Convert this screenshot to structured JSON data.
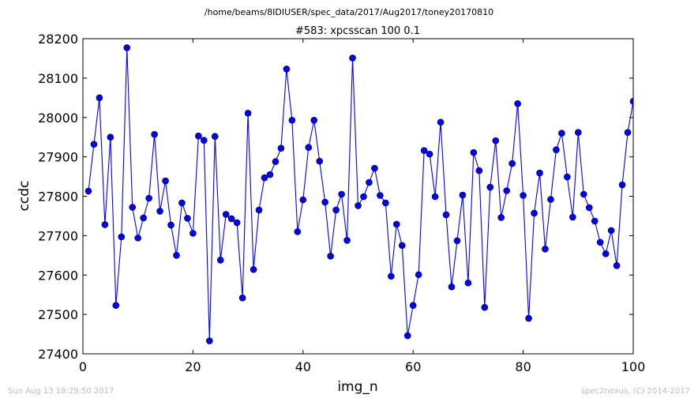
{
  "chart_data": {
    "type": "line",
    "suptitle": "/home/beams/8IDIUSER/spec_data/2017/Aug2017/toney20170810",
    "title": "#583: xpcsscan 100 0.1",
    "xlabel": "img_n",
    "ylabel": "ccdc",
    "xlim": [
      0,
      100
    ],
    "ylim": [
      27400,
      28200
    ],
    "xticks": [
      0,
      20,
      40,
      60,
      80,
      100
    ],
    "yticks": [
      27400,
      27500,
      27600,
      27700,
      27800,
      27900,
      28000,
      28100,
      28200
    ],
    "grid": false,
    "line_color": "#0000ff",
    "marker": "circle",
    "series": [
      {
        "x": [
          1,
          2,
          3,
          4,
          5,
          6,
          7,
          8,
          9,
          10,
          11,
          12,
          13,
          14,
          15,
          16,
          17,
          18,
          19,
          20,
          21,
          22,
          23,
          24,
          25,
          26,
          27,
          28,
          29,
          30,
          31,
          32,
          33,
          34,
          35,
          36,
          37,
          38,
          39,
          40,
          41,
          42,
          43,
          44,
          45,
          46,
          47,
          48,
          49,
          50,
          51,
          52,
          53,
          54,
          55,
          56,
          57,
          58,
          59,
          60,
          61,
          62,
          63,
          64,
          65,
          66,
          67,
          68,
          69,
          70,
          71,
          72,
          73,
          74,
          75,
          76,
          77,
          78,
          79,
          80,
          81,
          82,
          83,
          84,
          85,
          86,
          87,
          88,
          89,
          90,
          91,
          92,
          93,
          94,
          95,
          96,
          97,
          98,
          99,
          100
        ],
        "values": [
          27813,
          27932,
          28050,
          27728,
          27950,
          27523,
          27697,
          28177,
          27772,
          27694,
          27745,
          27795,
          27957,
          27762,
          27839,
          27727,
          27650,
          27783,
          27744,
          27706,
          27953,
          27942,
          27433,
          27952,
          27638,
          27754,
          27743,
          27733,
          27542,
          28011,
          27614,
          27765,
          27847,
          27855,
          27888,
          27922,
          28123,
          27993,
          27710,
          27791,
          27924,
          27993,
          27889,
          27785,
          27648,
          27765,
          27805,
          27688,
          28151,
          27776,
          27799,
          27835,
          27871,
          27802,
          27783,
          27597,
          27729,
          27675,
          27446,
          27523,
          27601,
          27916,
          27907,
          27799,
          27988,
          27753,
          27570,
          27687,
          27803,
          27580,
          27911,
          27865,
          27518,
          27823,
          27941,
          27746,
          27814,
          27883,
          28035,
          27802,
          27490,
          27757,
          27859,
          27666,
          27792,
          27918,
          27960,
          27849,
          27747,
          27962,
          27805,
          27771,
          27737,
          27683,
          27654,
          27713,
          27624,
          27829,
          27962,
          28041
        ]
      }
    ]
  },
  "footer": {
    "left": "Sun Aug 13 18:29:50 2017",
    "right": "spec2nexus, (C) 2014-2017"
  }
}
